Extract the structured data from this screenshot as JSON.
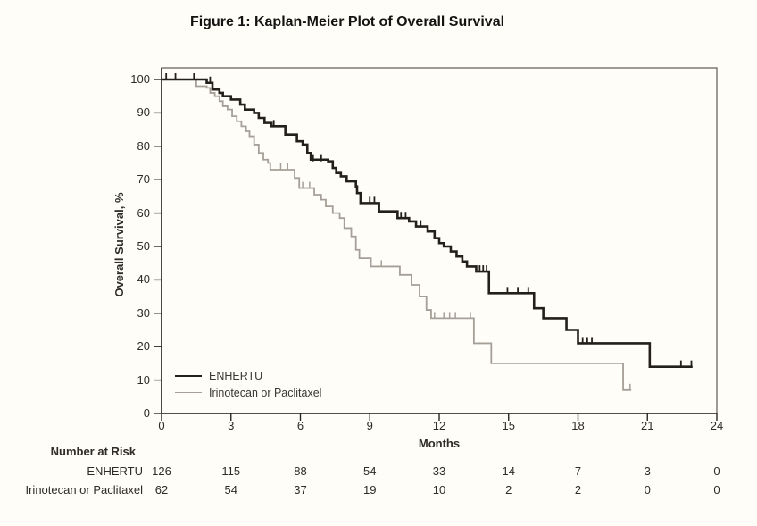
{
  "figure": {
    "title": "Figure 1: Kaplan-Meier Plot of Overall Survival"
  },
  "chart_data": {
    "type": "line",
    "subtype": "kaplan-meier-step",
    "title": "Figure 1: Kaplan-Meier Plot of Overall Survival",
    "xlabel": "Months",
    "ylabel": "Overall Survival, %",
    "xlim": [
      0,
      24
    ],
    "ylim": [
      0,
      100
    ],
    "x_ticks": [
      0,
      3,
      6,
      9,
      12,
      15,
      18,
      21,
      24
    ],
    "y_ticks": [
      0,
      10,
      20,
      30,
      40,
      50,
      60,
      70,
      80,
      90,
      100
    ],
    "grid": false,
    "legend_position": "inside-bottom-left",
    "series": [
      {
        "name": "ENHERTU",
        "color": "#221f1c",
        "stroke_width": 2.6,
        "steps": [
          [
            0,
            100
          ],
          [
            1.95,
            99
          ],
          [
            2.2,
            97
          ],
          [
            2.5,
            96
          ],
          [
            2.65,
            95
          ],
          [
            3.0,
            94
          ],
          [
            3.4,
            92.5
          ],
          [
            3.6,
            91
          ],
          [
            4.0,
            90
          ],
          [
            4.2,
            88.5
          ],
          [
            4.45,
            87
          ],
          [
            4.75,
            86
          ],
          [
            5.35,
            83.5
          ],
          [
            5.85,
            81.5
          ],
          [
            6.1,
            80.5
          ],
          [
            6.3,
            78
          ],
          [
            6.45,
            76
          ],
          [
            7.2,
            75.5
          ],
          [
            7.4,
            73.5
          ],
          [
            7.55,
            72
          ],
          [
            7.75,
            71
          ],
          [
            8.0,
            69.5
          ],
          [
            8.4,
            68
          ],
          [
            8.45,
            66
          ],
          [
            8.6,
            63
          ],
          [
            9.4,
            60.5
          ],
          [
            10.2,
            58.5
          ],
          [
            10.7,
            57.5
          ],
          [
            11.0,
            56
          ],
          [
            11.5,
            54.5
          ],
          [
            11.8,
            52.5
          ],
          [
            12.0,
            51
          ],
          [
            12.2,
            50
          ],
          [
            12.5,
            48.5
          ],
          [
            12.75,
            47
          ],
          [
            13.0,
            45.5
          ],
          [
            13.2,
            44
          ],
          [
            13.6,
            42.5
          ],
          [
            14.15,
            36
          ],
          [
            16.1,
            31.5
          ],
          [
            16.5,
            28.5
          ],
          [
            17.5,
            25
          ],
          [
            18.0,
            21
          ],
          [
            21.1,
            14
          ],
          [
            22.95,
            14
          ]
        ],
        "censor_marks": [
          [
            0.2,
            100
          ],
          [
            0.6,
            100
          ],
          [
            1.4,
            100
          ],
          [
            2.1,
            99
          ],
          [
            4.85,
            86
          ],
          [
            6.55,
            75.5
          ],
          [
            6.9,
            75.5
          ],
          [
            9.0,
            63
          ],
          [
            9.2,
            63
          ],
          [
            10.35,
            58.5
          ],
          [
            10.55,
            58.5
          ],
          [
            11.2,
            56
          ],
          [
            13.75,
            42.5
          ],
          [
            13.9,
            42.5
          ],
          [
            14.05,
            42.5
          ],
          [
            14.95,
            36
          ],
          [
            15.4,
            36
          ],
          [
            15.85,
            36
          ],
          [
            18.2,
            21
          ],
          [
            18.4,
            21
          ],
          [
            18.6,
            21
          ],
          [
            22.45,
            14
          ],
          [
            22.9,
            14
          ]
        ]
      },
      {
        "name": "Irinotecan or Paclitaxel",
        "color": "#a69f97",
        "stroke_width": 1.8,
        "steps": [
          [
            0,
            100
          ],
          [
            1.5,
            98
          ],
          [
            1.95,
            97.5
          ],
          [
            2.1,
            96
          ],
          [
            2.3,
            95
          ],
          [
            2.5,
            93.5
          ],
          [
            2.65,
            92
          ],
          [
            2.85,
            91
          ],
          [
            3.05,
            89
          ],
          [
            3.25,
            87.5
          ],
          [
            3.45,
            86
          ],
          [
            3.65,
            84.5
          ],
          [
            3.8,
            83
          ],
          [
            4.0,
            80.5
          ],
          [
            4.2,
            78
          ],
          [
            4.4,
            76
          ],
          [
            4.6,
            75
          ],
          [
            4.7,
            73
          ],
          [
            5.75,
            70.5
          ],
          [
            5.95,
            67.5
          ],
          [
            6.6,
            65.5
          ],
          [
            6.9,
            64
          ],
          [
            7.1,
            62
          ],
          [
            7.4,
            60
          ],
          [
            7.7,
            58.5
          ],
          [
            7.9,
            55.5
          ],
          [
            8.2,
            53
          ],
          [
            8.4,
            49
          ],
          [
            8.55,
            46.5
          ],
          [
            9.05,
            44
          ],
          [
            10.3,
            41.5
          ],
          [
            10.8,
            38.5
          ],
          [
            11.15,
            35
          ],
          [
            11.45,
            31
          ],
          [
            11.65,
            28.5
          ],
          [
            13.5,
            21
          ],
          [
            14.25,
            15
          ],
          [
            19.95,
            7
          ],
          [
            20.3,
            7
          ]
        ],
        "censor_marks": [
          [
            5.15,
            73
          ],
          [
            5.45,
            73
          ],
          [
            6.1,
            67.5
          ],
          [
            6.4,
            67.5
          ],
          [
            9.5,
            44
          ],
          [
            11.8,
            28.5
          ],
          [
            12.2,
            28.5
          ],
          [
            12.45,
            28.5
          ],
          [
            12.7,
            28.5
          ],
          [
            13.35,
            28.5
          ],
          [
            20.25,
            7
          ]
        ]
      }
    ]
  },
  "risk_table": {
    "header": "Number at Risk",
    "months": [
      0,
      3,
      6,
      9,
      12,
      15,
      18,
      21,
      24
    ],
    "rows": [
      {
        "label": "ENHERTU",
        "counts": [
          126,
          115,
          88,
          54,
          33,
          14,
          7,
          3,
          0
        ]
      },
      {
        "label": "Irinotecan or Paclitaxel",
        "counts": [
          62,
          54,
          37,
          19,
          10,
          2,
          2,
          0,
          0
        ]
      }
    ]
  }
}
